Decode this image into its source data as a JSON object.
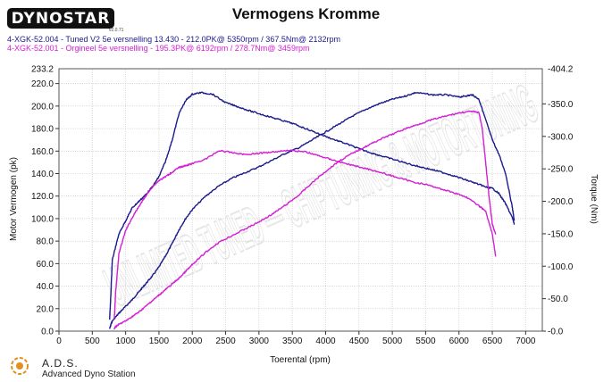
{
  "header": {
    "logo_text": "DYNOSTAR",
    "logo_sub": "v2.0.71",
    "title": "Vermogens Kromme",
    "runs": [
      "4-XGK-52.004 - Tuned V2 5e versnelling 13.430  - 212.0PK@ 5350rpm / 367.5Nm@ 2132rpm",
      "4-XGK-52.001 - Orgineel 5e versnelling  - 195.3PK@ 6192rpm / 278.7Nm@ 3459rpm"
    ]
  },
  "footer": {
    "name": "A.D.S.",
    "subtitle": "Advanced Dyno Station"
  },
  "watermark": "UNLIMITED TUNED — CHIPTUNING & MOTORTUNING",
  "colors": {
    "tuned": "#1a1a8c",
    "original": "#d41ed4",
    "grid": "#c8c8c8"
  },
  "chart_data": {
    "type": "line",
    "title": "Vermogens Kromme",
    "xlabel": "Toerental (rpm)",
    "ylabel": "Motor Vermogen (pk)",
    "y2label": "Torque (Nm)",
    "xlim": [
      0,
      7250
    ],
    "ylim": [
      0,
      233.2
    ],
    "y2lim": [
      0,
      404.2
    ],
    "grid": true,
    "x_ticks": [
      "0",
      "500",
      "1000",
      "1500",
      "2000",
      "2500",
      "3000",
      "3500",
      "4000",
      "4500",
      "5000",
      "5500",
      "6000",
      "6500",
      "7000"
    ],
    "y_ticks": [
      "0.0",
      "20.0",
      "40.0",
      "60.0",
      "80.0",
      "100.0",
      "120.0",
      "140.0",
      "160.0",
      "180.0",
      "200.0",
      "220.0"
    ],
    "y_top_label": "233.2",
    "y2_ticks": [
      "-0.0",
      "-50.0",
      "-100.0",
      "-150.0",
      "-200.0",
      "-250.0",
      "-300.0",
      "-350.0"
    ],
    "y2_top_label": "-404.2",
    "series": [
      {
        "name": "4-XGK-52.004 - Tuned V2 5e versnelling 13.430 (Vermogen)",
        "axis": "left",
        "color": "#1a1a8c",
        "x": [
          760,
          780,
          800,
          900,
          1000,
          1100,
          1200,
          1300,
          1400,
          1500,
          1600,
          1700,
          1800,
          1900,
          2000,
          2200,
          2400,
          2600,
          2800,
          3000,
          3200,
          3400,
          3600,
          3800,
          4000,
          4200,
          4400,
          4600,
          4800,
          5000,
          5200,
          5350,
          5600,
          5800,
          6000,
          6100,
          6200,
          6300,
          6400,
          6500,
          6600,
          6700,
          6800,
          6830
        ],
        "y": [
          2,
          6,
          9,
          16,
          22,
          28,
          35,
          42,
          49,
          57,
          67,
          78,
          90,
          100,
          108,
          120,
          129,
          136,
          141,
          146,
          152,
          158,
          163,
          170,
          177,
          184,
          191,
          197,
          202,
          206,
          209,
          212,
          210,
          210,
          208,
          209,
          210,
          206,
          188,
          170,
          157,
          140,
          110,
          98
        ]
      },
      {
        "name": "4-XGK-52.004 - Tuned V2 5e versnelling 13.430 (Torque)",
        "axis": "right",
        "color": "#1a1a8c",
        "x": [
          760,
          780,
          800,
          900,
          1000,
          1100,
          1200,
          1300,
          1400,
          1500,
          1600,
          1700,
          1800,
          1900,
          2000,
          2132,
          2300,
          2500,
          2700,
          2900,
          3100,
          3300,
          3500,
          3700,
          3900,
          4100,
          4300,
          4500,
          4700,
          4900,
          5100,
          5300,
          5500,
          5700,
          5900,
          6100,
          6300,
          6400,
          6500,
          6600,
          6700,
          6800,
          6830
        ],
        "y": [
          18,
          60,
          110,
          150,
          170,
          190,
          200,
          210,
          222,
          238,
          262,
          295,
          335,
          355,
          365,
          367.5,
          365,
          352,
          345,
          338,
          332,
          326,
          320,
          312,
          304,
          296,
          289,
          281,
          274,
          268,
          262,
          256,
          251,
          246,
          240,
          233,
          226,
          222,
          220,
          212,
          196,
          175,
          165
        ]
      },
      {
        "name": "4-XGK-52.001 - Orgineel 5e versnelling (Vermogen)",
        "axis": "left",
        "color": "#d41ed4",
        "x": [
          830,
          850,
          900,
          1000,
          1100,
          1200,
          1300,
          1400,
          1500,
          1600,
          1700,
          1800,
          1900,
          2000,
          2200,
          2400,
          2600,
          2800,
          3000,
          3200,
          3400,
          3600,
          3800,
          4000,
          4200,
          4400,
          4600,
          4800,
          5000,
          5200,
          5400,
          5600,
          5800,
          6000,
          6192,
          6300,
          6350,
          6400,
          6450,
          6500,
          6550
        ],
        "y": [
          2,
          4,
          6,
          9,
          13,
          17,
          22,
          27,
          32,
          37,
          42,
          47,
          53,
          59,
          70,
          79,
          85,
          91,
          97,
          104,
          112,
          121,
          132,
          142,
          151,
          158,
          164,
          170,
          175,
          180,
          184,
          188,
          191,
          194,
          195.3,
          194,
          180,
          150,
          120,
          95,
          86
        ]
      },
      {
        "name": "4-XGK-52.001 - Orgineel 5e versnelling (Torque)",
        "axis": "right",
        "color": "#d41ed4",
        "x": [
          830,
          850,
          900,
          1000,
          1100,
          1200,
          1300,
          1400,
          1500,
          1600,
          1700,
          1800,
          1900,
          2000,
          2200,
          2400,
          2600,
          2800,
          3000,
          3200,
          3459,
          3700,
          3900,
          4100,
          4300,
          4500,
          4700,
          4900,
          5100,
          5300,
          5500,
          5700,
          5900,
          6100,
          6300,
          6400,
          6500,
          6550
        ],
        "y": [
          18,
          60,
          120,
          155,
          175,
          192,
          208,
          222,
          232,
          238,
          245,
          252,
          255,
          258,
          265,
          278,
          275,
          272,
          274,
          276,
          278.7,
          276,
          270,
          264,
          258,
          253,
          248,
          242,
          236,
          230,
          226,
          220,
          214,
          207,
          193,
          185,
          150,
          115
        ]
      }
    ]
  }
}
